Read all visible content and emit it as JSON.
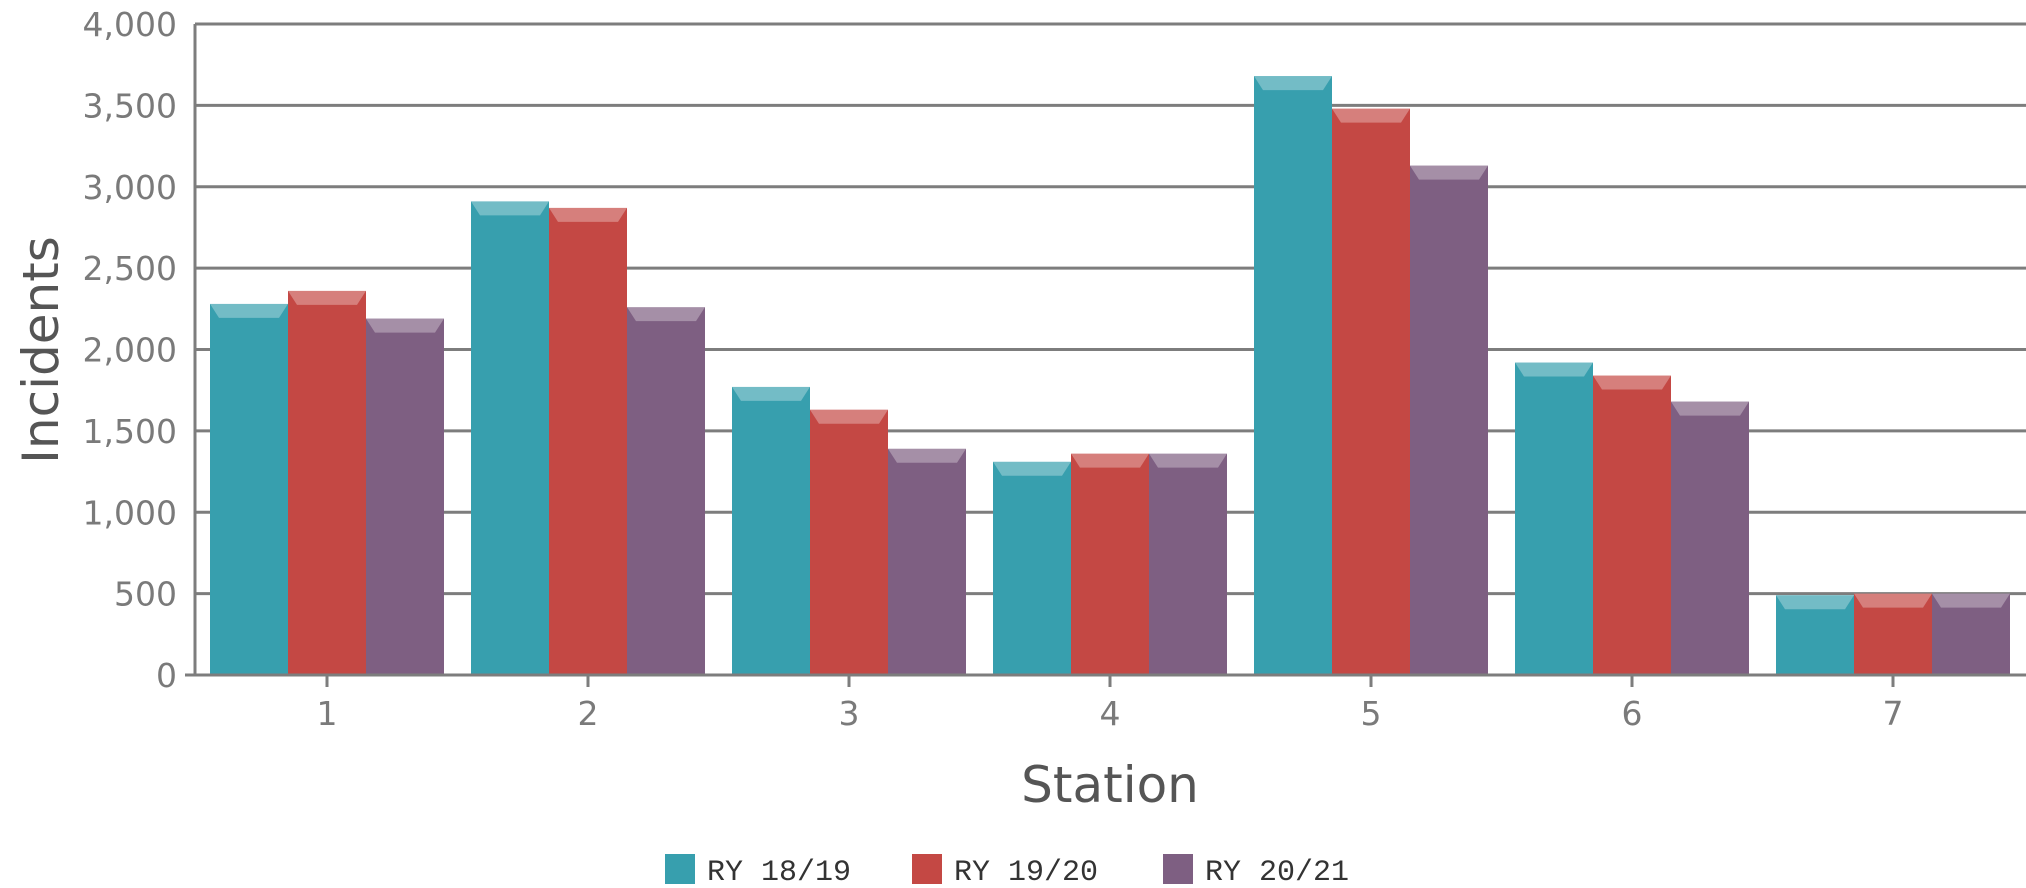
{
  "chart_data": {
    "type": "bar",
    "title": "",
    "xlabel": "Station",
    "ylabel": "Incidents",
    "categories": [
      "1",
      "2",
      "3",
      "4",
      "5",
      "6",
      "7"
    ],
    "series": [
      {
        "name": "RY 18/19",
        "color": "#379fae",
        "values": [
          2280,
          2910,
          1770,
          1310,
          3680,
          1920,
          490
        ]
      },
      {
        "name": "RY 19/20",
        "color": "#c44844",
        "values": [
          2360,
          2870,
          1630,
          1360,
          3480,
          1840,
          500
        ]
      },
      {
        "name": "RY 20/21",
        "color": "#7e5f82",
        "values": [
          2190,
          2260,
          1390,
          1360,
          3130,
          1680,
          500
        ]
      }
    ],
    "ylim": [
      0,
      4000
    ],
    "yticks": [
      "0",
      "500",
      "1,000",
      "1,500",
      "2,000",
      "2,500",
      "3,000",
      "3,500",
      "4,000"
    ],
    "grid": true,
    "legend_position": "bottom"
  }
}
